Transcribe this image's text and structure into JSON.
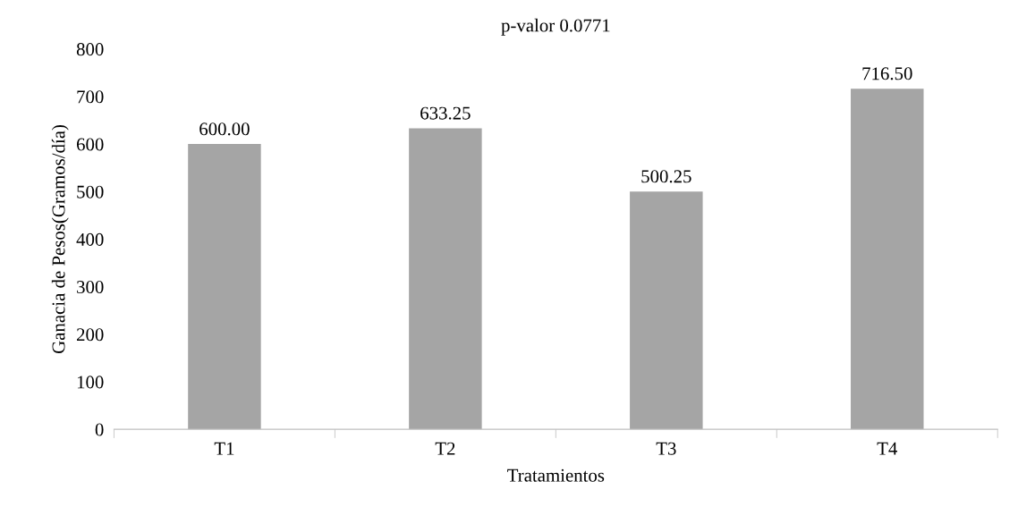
{
  "chart_data": {
    "type": "bar",
    "title": "p-valor 0.0771",
    "xlabel": "Tratamientos",
    "ylabel": "Ganacia de Pesos(Gramos/día)",
    "categories": [
      "T1",
      "T2",
      "T3",
      "T4"
    ],
    "values": [
      600.0,
      633.25,
      500.25,
      716.5
    ],
    "value_labels": [
      "600.00",
      "633.25",
      "500.25",
      "716.50"
    ],
    "color": "#a5a5a5",
    "ylim": [
      0,
      800
    ],
    "yticks": [
      0,
      100,
      200,
      300,
      400,
      500,
      600,
      700,
      800
    ],
    "grid": false
  }
}
